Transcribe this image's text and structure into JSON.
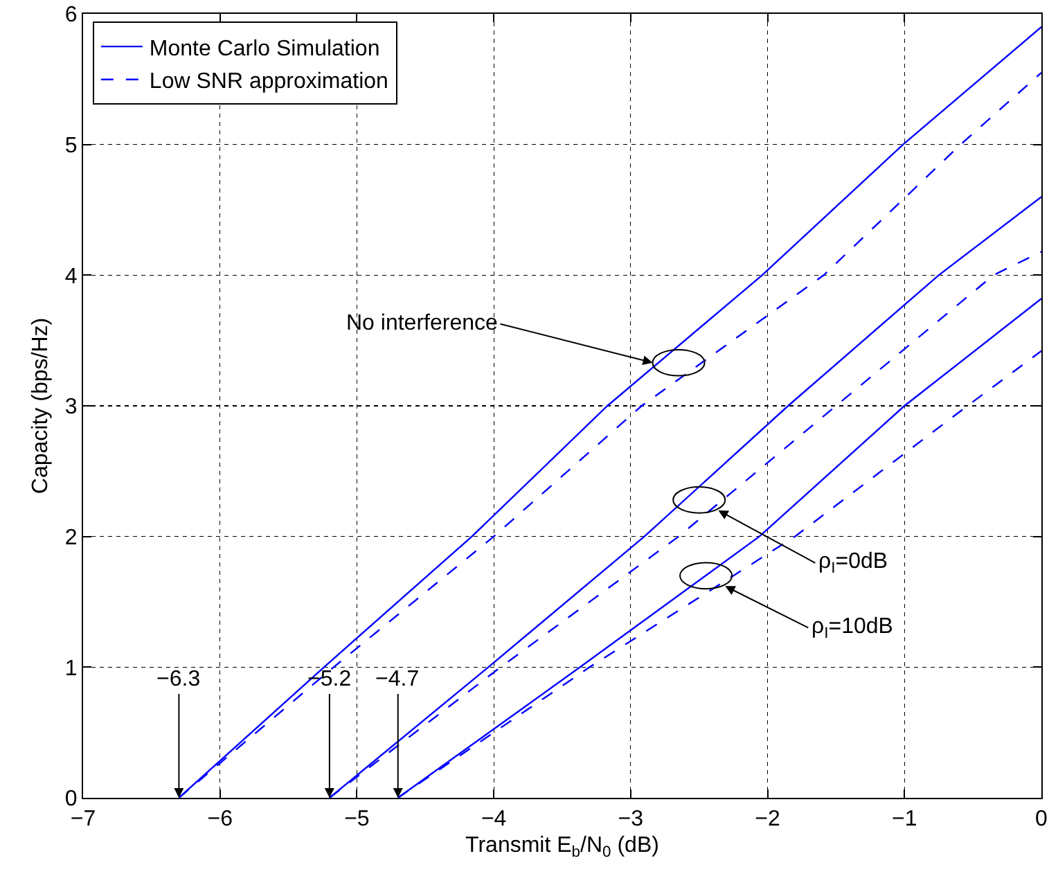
{
  "chart_data": {
    "type": "line",
    "xlabel": "Transmit E$_{b}$/N$_{0}$ (dB)",
    "ylabel": "Capacity (bps/Hz)",
    "xlim": [
      -7,
      0
    ],
    "xticks": [
      -7,
      -6,
      -5,
      -4,
      -3,
      -2,
      -1,
      0
    ],
    "ylim": [
      0,
      6
    ],
    "yticks": [
      0,
      1,
      2,
      3,
      4,
      5,
      6
    ],
    "grid": true,
    "legend": "top left",
    "series": [
      {
        "name": "Monte Carlo Simulation",
        "color": "#0000ff",
        "line_style": "solid",
        "x": [
          -6.3,
          -5.24,
          -4.16,
          -3.17,
          -2.04,
          -1.01,
          0
        ],
        "values": [
          0,
          1,
          2,
          3,
          4,
          5,
          5.9
        ]
      },
      {
        "name": "Low SNR approximation",
        "color": "#0000ff",
        "line_style": "dashed",
        "x": [
          -6.3,
          -5.17,
          -4.0,
          -2.92,
          -1.59,
          -0.59,
          0
        ],
        "values": [
          0,
          1,
          2,
          3,
          4,
          5,
          5.55
        ]
      },
      {
        "color": "#0000ff",
        "line_style": "solid",
        "x": [
          -5.2,
          -4.04,
          -2.9,
          -1.85,
          -0.75,
          0
        ],
        "values": [
          0,
          1,
          2,
          3,
          4,
          4.6
        ]
      },
      {
        "color": "#0000ff",
        "line_style": "dashed",
        "x": [
          -5.2,
          -3.95,
          -2.65,
          -1.5,
          -0.35,
          0
        ],
        "values": [
          0,
          1,
          2,
          3,
          4,
          4.18
        ]
      },
      {
        "color": "#0000ff",
        "line_style": "solid",
        "x": [
          -4.7,
          -3.37,
          -2.06,
          -1.0,
          0
        ],
        "values": [
          0,
          1,
          2,
          3,
          3.82
        ]
      },
      {
        "color": "#0000ff",
        "line_style": "dashed",
        "x": [
          -4.7,
          -3.3,
          -1.8,
          -0.54,
          0
        ],
        "values": [
          0,
          1,
          2,
          3,
          3.42
        ]
      }
    ],
    "annotations": [
      {
        "text": "No interference",
        "x": -2.84,
        "y": 3.33
      },
      {
        "text": "ρ$_{I}$=0dB",
        "x": -2.36,
        "y": 2.2
      },
      {
        "text": "ρ$_{I}$=10dB",
        "x": -2.31,
        "y": 1.62
      },
      {
        "text": "−6.3",
        "x": -6.3,
        "y": 0
      },
      {
        "text": "−5.2",
        "x": -5.2,
        "y": 0
      },
      {
        "text": "−4.7",
        "x": -4.7,
        "y": 0
      }
    ]
  }
}
